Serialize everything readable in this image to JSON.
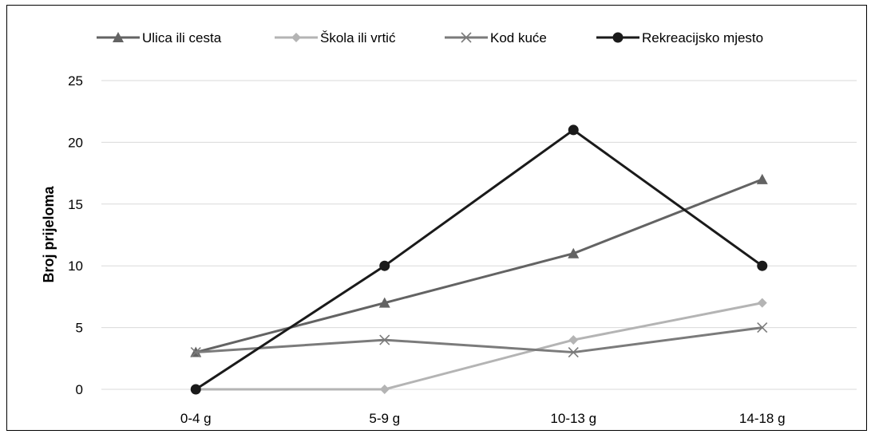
{
  "chart_data": {
    "type": "line",
    "title": "",
    "xlabel": "",
    "ylabel": "Broj prijeloma",
    "categories": [
      "0-4 g",
      "5-9 g",
      "10-13 g",
      "14-18 g"
    ],
    "ylim": [
      0,
      25
    ],
    "yticks": [
      0,
      5,
      10,
      15,
      20,
      25
    ],
    "grid": "horizontal",
    "legend_position": "top",
    "series": [
      {
        "name": "Ulica ili cesta",
        "values": [
          3,
          7,
          11,
          17
        ],
        "color": "#636363",
        "marker": "triangle"
      },
      {
        "name": "Škola ili vrtić",
        "values": [
          0,
          0,
          4,
          7
        ],
        "color": "#b4b4b4",
        "marker": "diamond"
      },
      {
        "name": "Kod kuće",
        "values": [
          3,
          4,
          3,
          5
        ],
        "color": "#7b7b7b",
        "marker": "x"
      },
      {
        "name": "Rekreacijsko mjesto",
        "values": [
          0,
          10,
          21,
          10
        ],
        "color": "#1a1a1a",
        "marker": "circle"
      }
    ]
  }
}
